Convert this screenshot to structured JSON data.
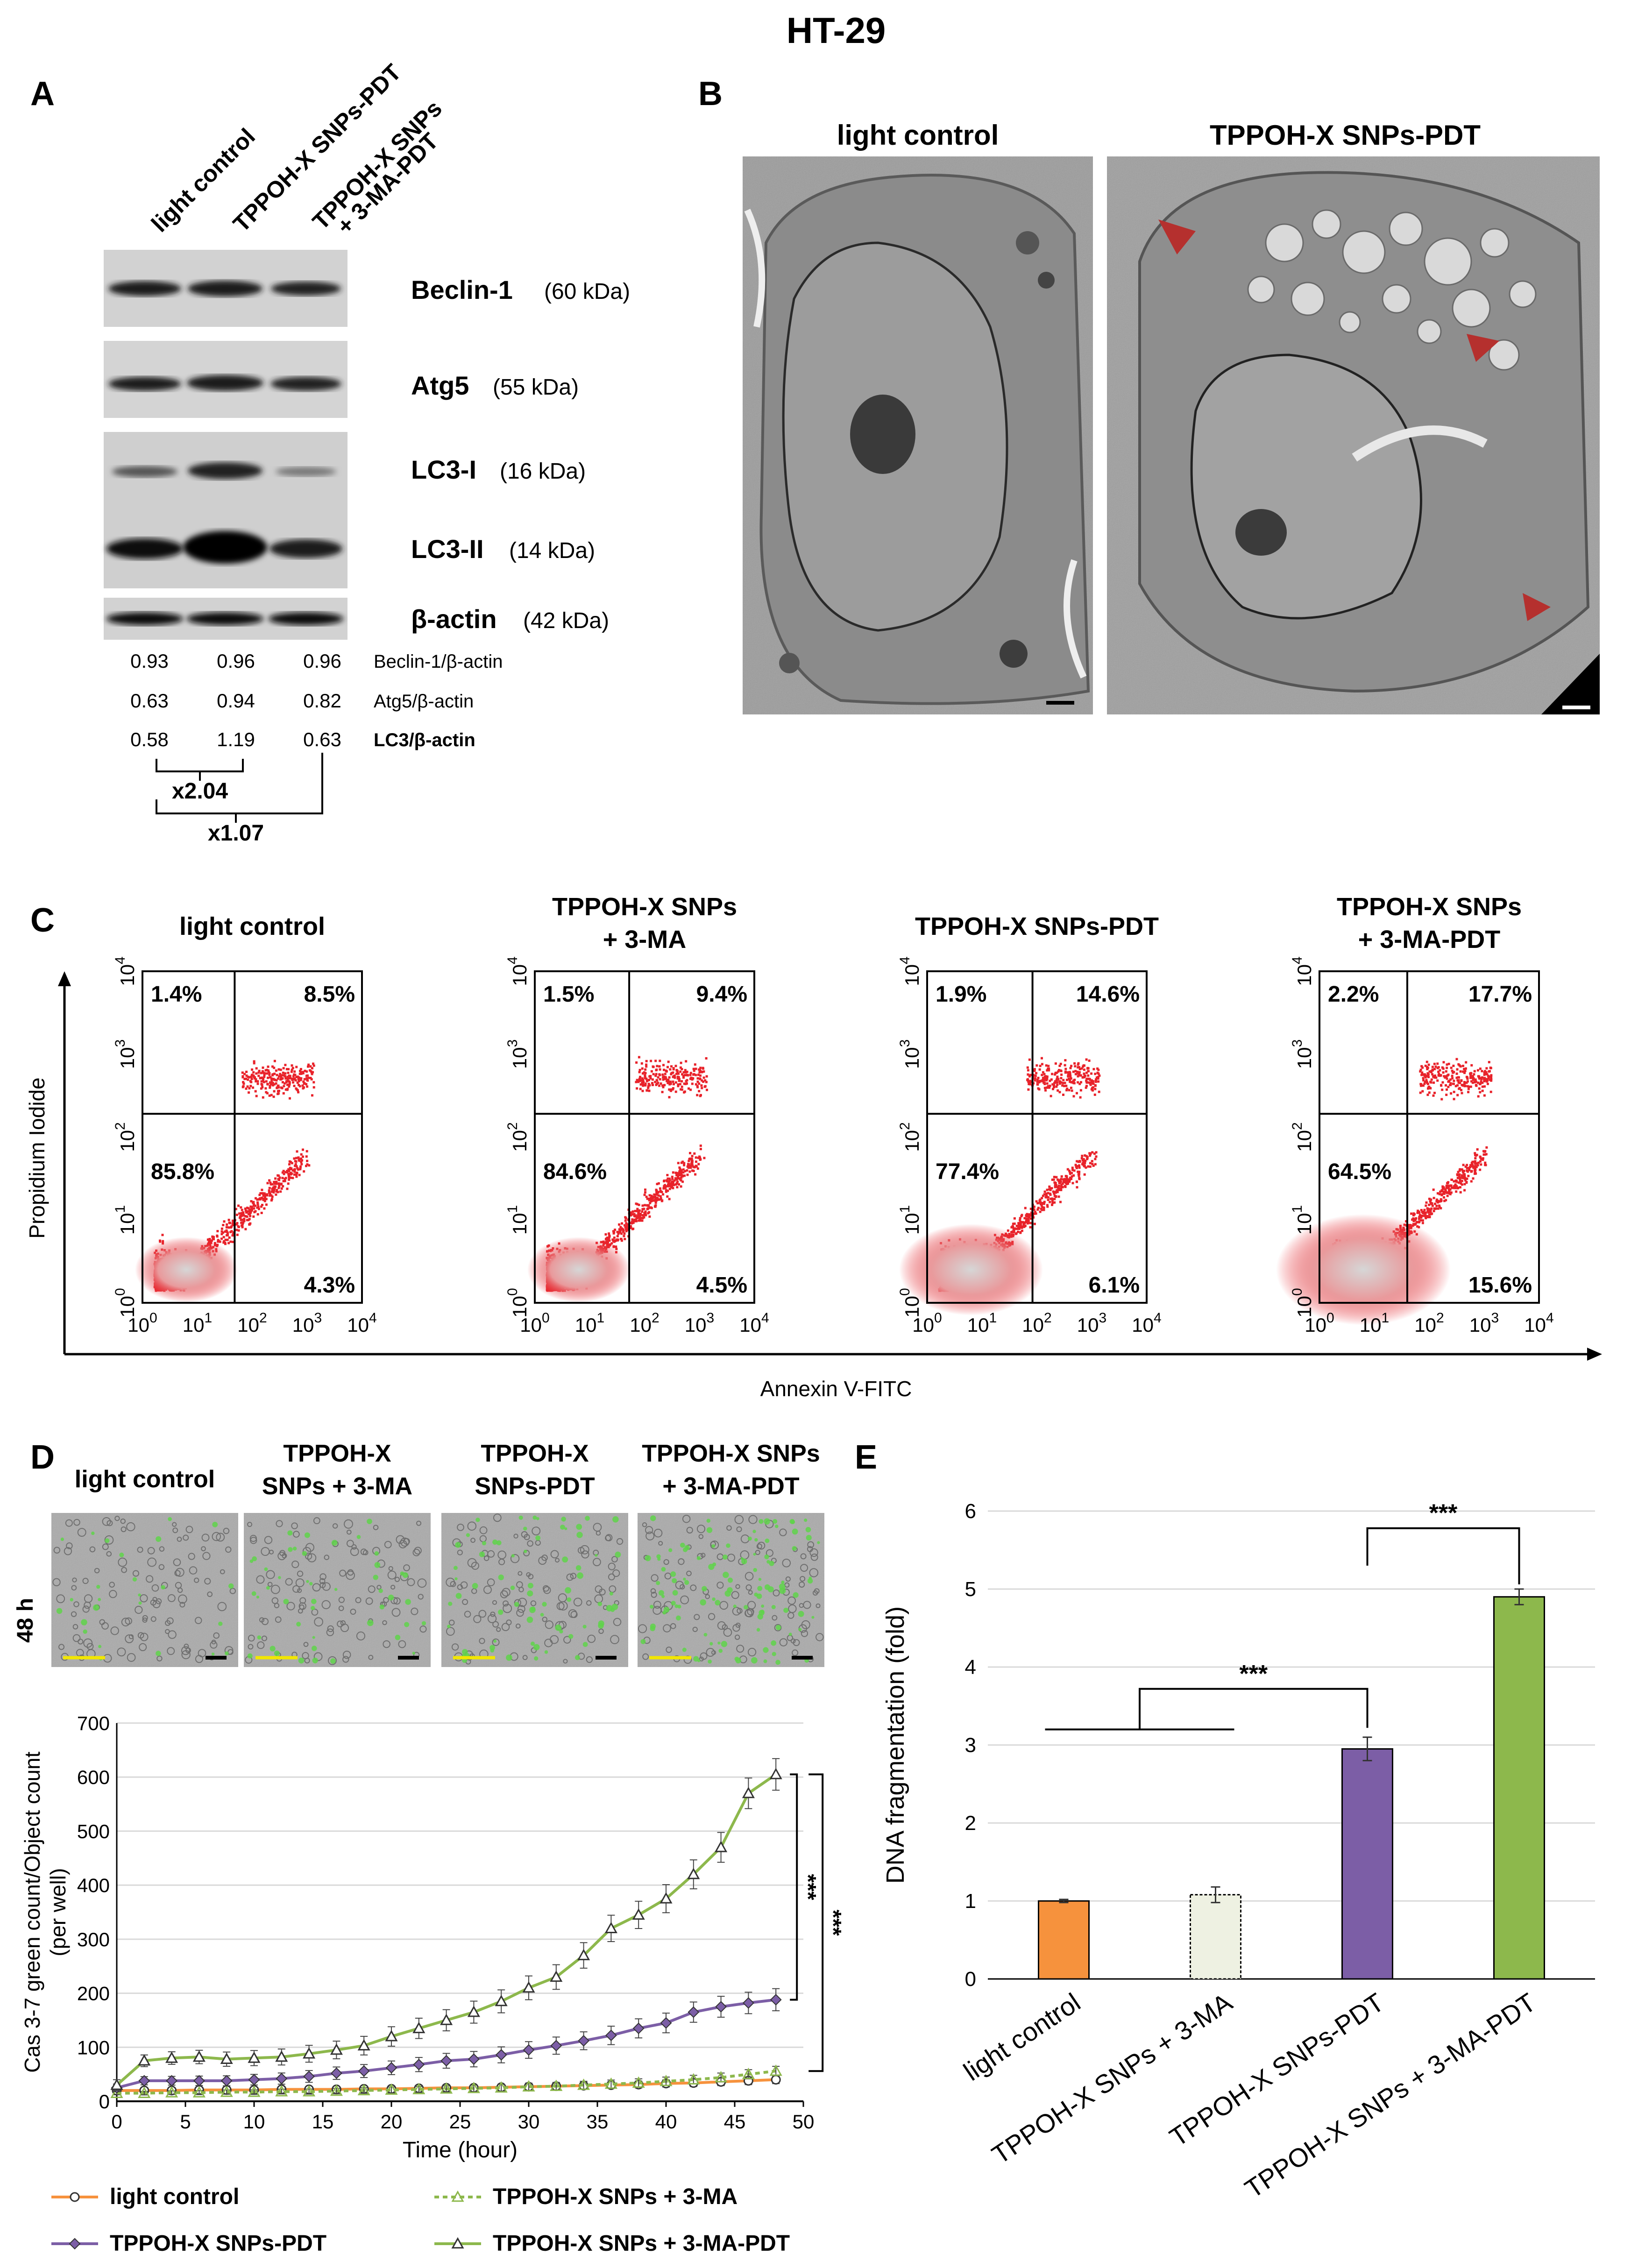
{
  "figure": {
    "title": "HT-29",
    "colors": {
      "orange": "#f6923d",
      "purple": "#7c5ea6",
      "green": "#8db84c",
      "beige": "#eef1e2",
      "flow_red": "#e8222a",
      "arrow_red": "#b5302e"
    }
  },
  "panel_a": {
    "label": "A",
    "lanes": [
      "light control",
      "TPPOH-X SNPs-PDT",
      "TPPOH-X SNPs",
      "+ 3-MA-PDT"
    ],
    "bands": [
      {
        "name": "Beclin-1",
        "kda": "(60 kDa)"
      },
      {
        "name": "Atg5",
        "kda": "(55 kDa)"
      },
      {
        "name": "LC3-I",
        "kda": "(16 kDa)"
      },
      {
        "name": "LC3-II",
        "kda": "(14 kDa)"
      },
      {
        "name": "β-actin",
        "kda": "(42 kDa)"
      }
    ],
    "ratios": [
      {
        "values": [
          "0.93",
          "0.96",
          "0.96"
        ],
        "label": "Beclin-1/β-actin"
      },
      {
        "values": [
          "0.63",
          "0.94",
          "0.82"
        ],
        "label": "Atg5/β-actin"
      },
      {
        "values": [
          "0.58",
          "1.19",
          "0.63"
        ],
        "label": "LC3/β-actin"
      }
    ],
    "fold_1": "x2.04",
    "fold_2": "x1.07"
  },
  "panel_b": {
    "label": "B",
    "images": [
      "light control",
      "TPPOH-X SNPs-PDT"
    ]
  },
  "panel_c": {
    "label": "C",
    "y_axis": "Propidium Iodide",
    "x_axis": "Annexin V-FITC",
    "tick_base": "10",
    "tick_exps": [
      "0",
      "1",
      "2",
      "3",
      "4"
    ],
    "plots": [
      {
        "title_1": "light control",
        "title_2": "",
        "ul": "1.4%",
        "ur": "8.5%",
        "ll": "85.8%",
        "lr": "4.3%"
      },
      {
        "title_1": "TPPOH-X SNPs",
        "title_2": "+ 3-MA",
        "ul": "1.5%",
        "ur": "9.4%",
        "ll": "84.6%",
        "lr": "4.5%"
      },
      {
        "title_1": "TPPOH-X SNPs-PDT",
        "title_2": "",
        "ul": "1.9%",
        "ur": "14.6%",
        "ll": "77.4%",
        "lr": "6.1%"
      },
      {
        "title_1": "TPPOH-X SNPs",
        "title_2": "+ 3-MA-PDT",
        "ul": "2.2%",
        "ur": "17.7%",
        "ll": "64.5%",
        "lr": "15.6%"
      }
    ]
  },
  "panel_d": {
    "label": "D",
    "images": [
      {
        "line1": "light control",
        "line2": ""
      },
      {
        "line1": "TPPOH-X",
        "line2": "SNPs + 3-MA"
      },
      {
        "line1": "TPPOH-X",
        "line2": "SNPs-PDT"
      },
      {
        "line1": "TPPOH-X SNPs",
        "line2": "+ 3-MA-PDT"
      }
    ],
    "time_label": "48 h",
    "significance": "***"
  },
  "panel_e": {
    "label": "E",
    "significance": "***"
  },
  "chart_data": [
    {
      "type": "line",
      "panel": "D",
      "xlabel": "Time (hour)",
      "ylabel": "Cas 3-7 green count/Object count (per well)",
      "ylabel_line1": "Cas 3-7 green count/Object count",
      "ylabel_line2": "(per well)",
      "xlim": [
        0,
        50
      ],
      "ylim": [
        0,
        700
      ],
      "xticks": [
        0,
        5,
        10,
        15,
        20,
        25,
        30,
        35,
        40,
        45,
        50
      ],
      "yticks": [
        0,
        100,
        200,
        300,
        400,
        500,
        600,
        700
      ],
      "grid": true,
      "legend_position": "bottom",
      "x": [
        0,
        2,
        4,
        6,
        8,
        10,
        12,
        14,
        16,
        18,
        20,
        22,
        24,
        26,
        28,
        30,
        32,
        34,
        36,
        38,
        40,
        42,
        44,
        46,
        48
      ],
      "series": [
        {
          "name": "light control",
          "color": "#f6923d",
          "marker": "circle",
          "values": [
            20,
            20,
            20,
            21,
            21,
            21,
            22,
            22,
            22,
            23,
            23,
            24,
            25,
            25,
            26,
            27,
            28,
            29,
            30,
            31,
            33,
            34,
            36,
            38,
            40
          ]
        },
        {
          "name": "TPPOH-X SNPs + 3-MA",
          "color": "#8db84c",
          "marker": "triangle-open",
          "dashed": true,
          "values": [
            15,
            15,
            16,
            16,
            17,
            17,
            18,
            18,
            19,
            20,
            21,
            22,
            23,
            24,
            25,
            27,
            28,
            30,
            32,
            34,
            37,
            40,
            44,
            50,
            56
          ]
        },
        {
          "name": "TPPOH-X SNPs-PDT",
          "color": "#7c5ea6",
          "marker": "diamond",
          "values": [
            25,
            38,
            38,
            38,
            38,
            40,
            42,
            46,
            52,
            56,
            62,
            68,
            75,
            78,
            86,
            95,
            103,
            112,
            122,
            135,
            145,
            165,
            175,
            182,
            188
          ]
        },
        {
          "name": "TPPOH-X SNPs + 3-MA-PDT",
          "color": "#8db84c",
          "marker": "triangle",
          "values": [
            30,
            75,
            80,
            82,
            78,
            80,
            82,
            88,
            95,
            103,
            120,
            135,
            150,
            165,
            185,
            210,
            230,
            270,
            320,
            345,
            375,
            420,
            470,
            570,
            605
          ]
        }
      ],
      "error_bars": {
        "light control": 5,
        "TPPOH-X SNPs + 3-MA": 6,
        "TPPOH-X SNPs-PDT": 14,
        "TPPOH-X SNPs + 3-MA-PDT": 20
      }
    },
    {
      "type": "bar",
      "panel": "E",
      "ylabel": "DNA fragmentation (fold)",
      "ylim": [
        0,
        6
      ],
      "yticks": [
        0,
        1,
        2,
        3,
        4,
        5,
        6
      ],
      "grid": true,
      "categories": [
        "light control",
        "TPPOH-X SNPs + 3-MA",
        "TPPOH-X SNPs-PDT",
        "TPPOH-X SNPs + 3-MA-PDT"
      ],
      "values": [
        1.0,
        1.08,
        2.95,
        4.9
      ],
      "errors": [
        0.02,
        0.1,
        0.15,
        0.1
      ],
      "colors": [
        "#f6923d",
        "#eef1e2",
        "#7c5ea6",
        "#8db84c"
      ]
    }
  ]
}
